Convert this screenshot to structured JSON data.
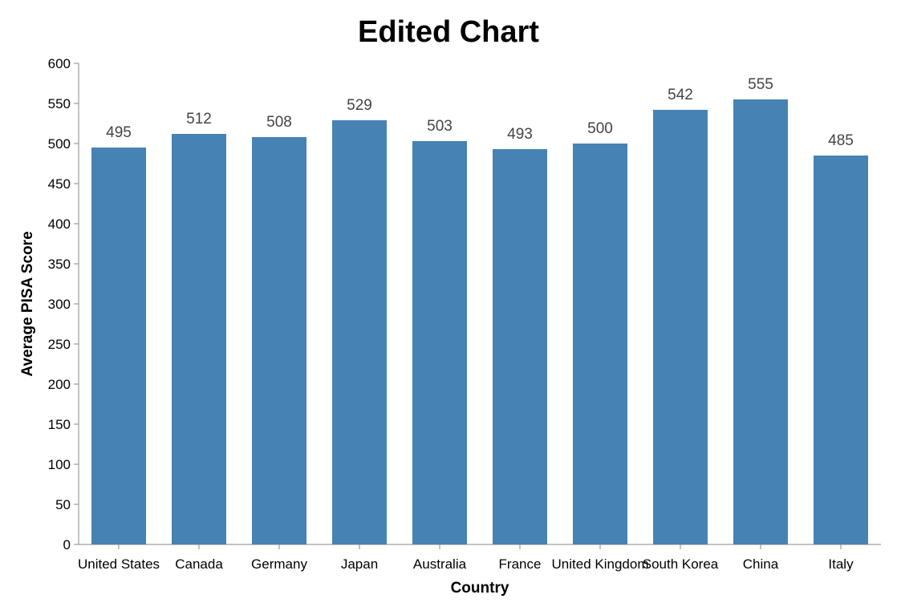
{
  "chart_data": {
    "type": "bar",
    "title": "Edited Chart",
    "xlabel": "Country",
    "ylabel": "Average PISA Score",
    "categories": [
      "United States",
      "Canada",
      "Germany",
      "Japan",
      "Australia",
      "France",
      "United Kingdom",
      "South Korea",
      "China",
      "Italy"
    ],
    "values": [
      495,
      512,
      508,
      529,
      503,
      493,
      500,
      542,
      555,
      485
    ],
    "ylim": [
      0,
      600
    ],
    "yticks": [
      0,
      50,
      100,
      150,
      200,
      250,
      300,
      350,
      400,
      450,
      500,
      550,
      600
    ],
    "grid": false,
    "bar_color": "#4682b4",
    "data_labels": true
  }
}
